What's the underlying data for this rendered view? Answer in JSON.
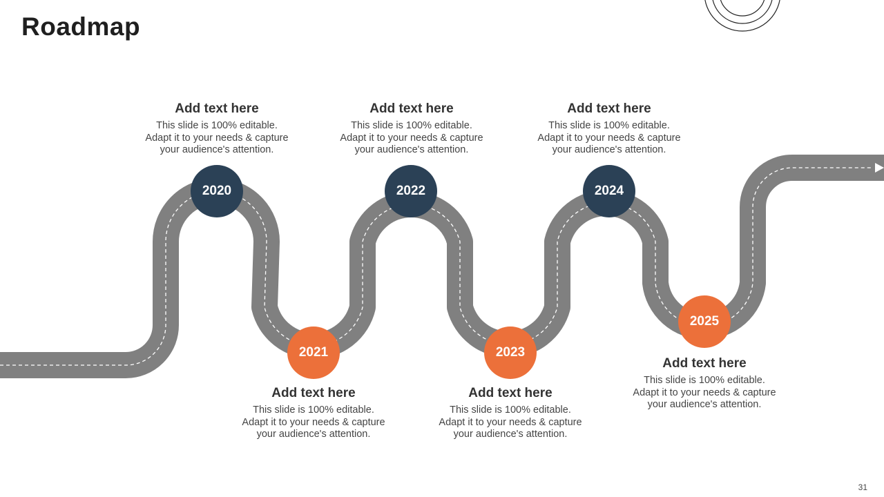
{
  "title": "Roadmap",
  "page_number": "31",
  "colors": {
    "road": "#808080",
    "lane_line": "#ffffff",
    "navy": "#2b4156",
    "orange": "#ec703a"
  },
  "milestones": [
    {
      "year": "2020",
      "color": "navy",
      "heading": "Add text here",
      "body": [
        "This slide is 100% editable.",
        "Adapt it to your needs & capture",
        "your audience's attention."
      ]
    },
    {
      "year": "2021",
      "color": "orange",
      "heading": "Add text here",
      "body": [
        "This slide is 100% editable.",
        "Adapt it to your needs & capture",
        "your audience's attention."
      ]
    },
    {
      "year": "2022",
      "color": "navy",
      "heading": "Add text here",
      "body": [
        "This slide is 100% editable.",
        "Adapt it to your needs & capture",
        "your audience's attention."
      ]
    },
    {
      "year": "2023",
      "color": "orange",
      "heading": "Add text here",
      "body": [
        "This slide is 100% editable.",
        "Adapt it to your needs & capture",
        "your audience's attention."
      ]
    },
    {
      "year": "2024",
      "color": "navy",
      "heading": "Add text here",
      "body": [
        "This slide is 100% editable.",
        "Adapt it to your needs & capture",
        "your audience's attention."
      ]
    },
    {
      "year": "2025",
      "color": "orange",
      "heading": "Add text here",
      "body": [
        "This slide is 100% editable.",
        "Adapt it to your needs & capture",
        "your audience's attention."
      ]
    }
  ]
}
